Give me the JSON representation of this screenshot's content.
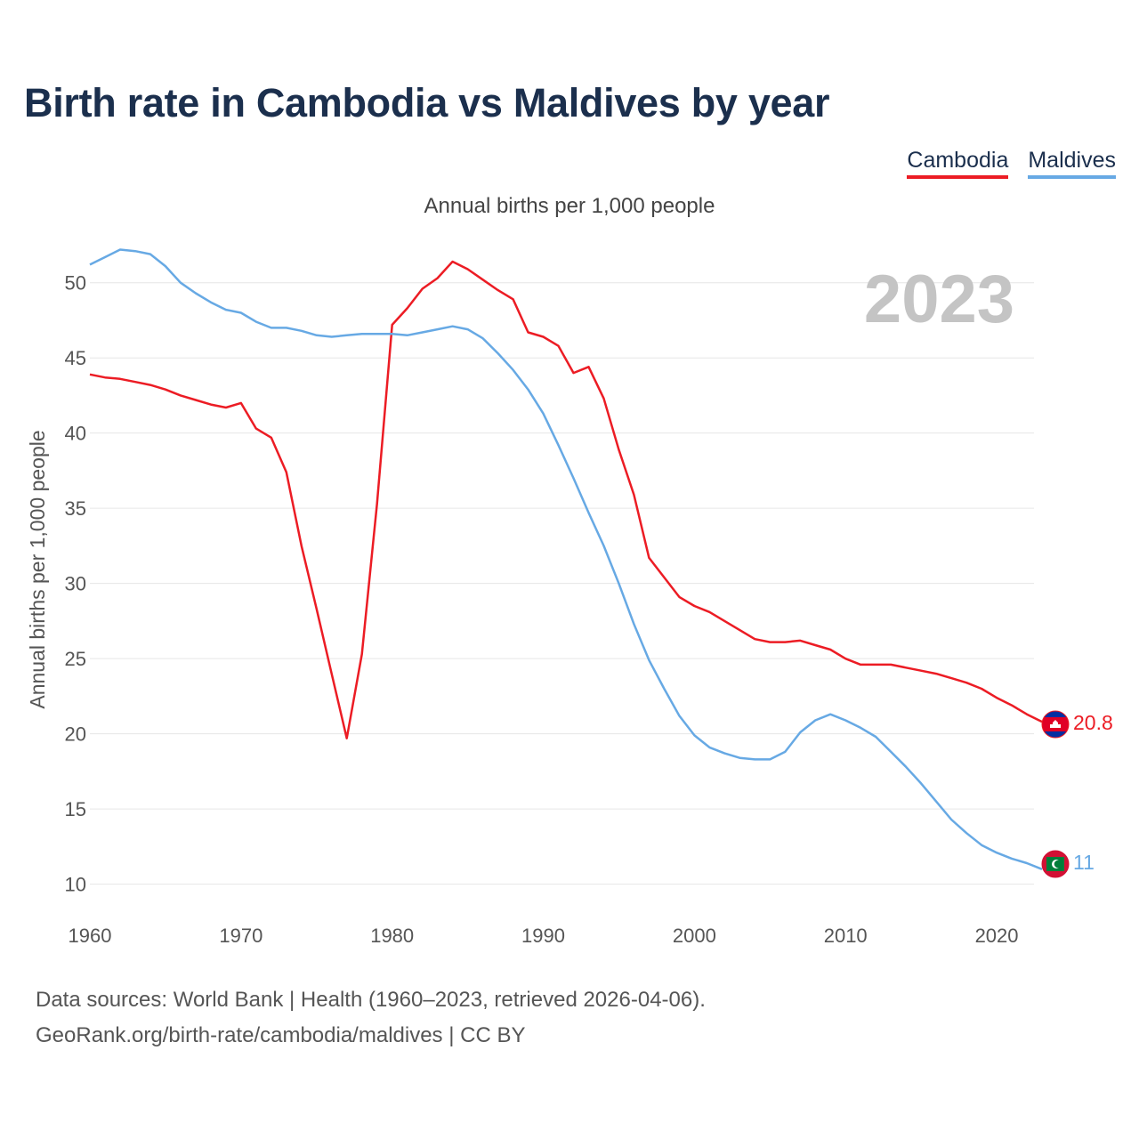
{
  "title": "Birth rate in Cambodia vs Maldives by year",
  "subtitle": "Annual births per 1,000 people",
  "legend": [
    {
      "label": "Cambodia",
      "color": "#ec1c24"
    },
    {
      "label": "Maldives",
      "color": "#67a9e4"
    }
  ],
  "year_label": "2023",
  "footer": {
    "line1": "Data sources: World Bank | Health (1960–2023, retrieved 2026-04-06).",
    "line2": "GeoRank.org/birth-rate/cambodia/maldives | CC BY"
  },
  "chart_data": {
    "type": "line",
    "title": "Birth rate in Cambodia vs Maldives by year",
    "ylabel": "Annual births per 1,000 people",
    "xlabel": "",
    "xlim": [
      1960,
      2023
    ],
    "ylim": [
      8.5,
      53
    ],
    "xticks": [
      1960,
      1970,
      1980,
      1990,
      2000,
      2010,
      2020
    ],
    "yticks": [
      10,
      15,
      20,
      25,
      30,
      35,
      40,
      45,
      50
    ],
    "x": [
      1960,
      1961,
      1962,
      1963,
      1964,
      1965,
      1966,
      1967,
      1968,
      1969,
      1970,
      1971,
      1972,
      1973,
      1974,
      1975,
      1976,
      1977,
      1978,
      1979,
      1980,
      1981,
      1982,
      1983,
      1984,
      1985,
      1986,
      1987,
      1988,
      1989,
      1990,
      1991,
      1992,
      1993,
      1994,
      1995,
      1996,
      1997,
      1998,
      1999,
      2000,
      2001,
      2002,
      2003,
      2004,
      2005,
      2006,
      2007,
      2008,
      2009,
      2010,
      2011,
      2012,
      2013,
      2014,
      2015,
      2016,
      2017,
      2018,
      2019,
      2020,
      2021,
      2022,
      2023
    ],
    "series": [
      {
        "name": "Cambodia",
        "color": "#ec1c24",
        "end_label": "20.8",
        "flag": "cambodia-flag",
        "values": [
          43.9,
          43.7,
          43.6,
          43.4,
          43.2,
          42.9,
          42.5,
          42.2,
          41.9,
          41.7,
          42.0,
          40.3,
          39.7,
          37.4,
          32.5,
          28.3,
          24.0,
          19.7,
          25.3,
          35.3,
          47.2,
          48.3,
          49.6,
          50.3,
          51.4,
          50.9,
          50.2,
          49.5,
          48.9,
          46.7,
          46.4,
          45.8,
          44.0,
          44.4,
          42.3,
          38.9,
          35.9,
          31.7,
          30.4,
          29.1,
          28.5,
          28.1,
          27.5,
          26.9,
          26.3,
          26.1,
          26.1,
          26.2,
          25.9,
          25.6,
          25.0,
          24.6,
          24.6,
          24.6,
          24.4,
          24.2,
          24.0,
          23.7,
          23.4,
          23.0,
          22.4,
          21.9,
          21.3,
          20.8
        ]
      },
      {
        "name": "Maldives",
        "color": "#67a9e4",
        "end_label": "11",
        "flag": "maldives-flag",
        "values": [
          51.2,
          51.7,
          52.2,
          52.1,
          51.9,
          51.1,
          50.0,
          49.3,
          48.7,
          48.2,
          48.0,
          47.4,
          47.0,
          47.0,
          46.8,
          46.5,
          46.4,
          46.5,
          46.6,
          46.6,
          46.6,
          46.5,
          46.7,
          46.9,
          47.1,
          46.9,
          46.3,
          45.3,
          44.2,
          42.9,
          41.3,
          39.2,
          37.0,
          34.7,
          32.5,
          30.0,
          27.3,
          24.9,
          23.0,
          21.2,
          19.9,
          19.1,
          18.7,
          18.4,
          18.3,
          18.3,
          18.8,
          20.1,
          20.9,
          21.3,
          20.9,
          20.4,
          19.8,
          18.8,
          17.8,
          16.7,
          15.5,
          14.3,
          13.4,
          12.6,
          12.1,
          11.7,
          11.4,
          11.0
        ]
      }
    ]
  }
}
